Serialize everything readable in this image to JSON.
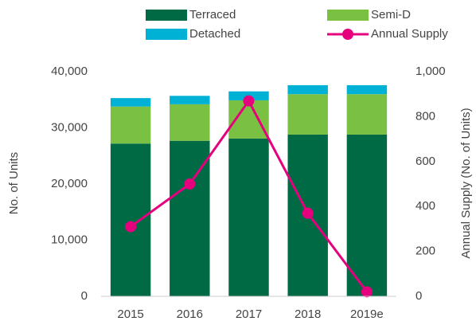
{
  "chart_data": {
    "type": "bar",
    "categories": [
      "2015",
      "2016",
      "2017",
      "2018",
      "2019e"
    ],
    "series": [
      {
        "name": "Terraced",
        "color": "#006a45",
        "values": [
          27200,
          27700,
          28100,
          28800,
          28800
        ]
      },
      {
        "name": "Semi-D",
        "color": "#7ac143",
        "values": [
          6600,
          6500,
          6800,
          7200,
          7200
        ]
      },
      {
        "name": "Detached",
        "color": "#00b1d6",
        "values": [
          1500,
          1500,
          1600,
          1600,
          1600
        ]
      },
      {
        "name": "Annual Supply",
        "color": "#e5007d",
        "type": "line",
        "axis": "y2",
        "values": [
          310,
          500,
          870,
          370,
          20
        ]
      }
    ],
    "ylabel": "No. of Units",
    "y2label": "Annual Supply (No. of Units)",
    "ylim": [
      0,
      40000
    ],
    "yticks": [
      0,
      {
        "value": 10000,
        "label": "10,000"
      },
      {
        "value": 20000,
        "label": "20,000"
      },
      {
        "value": 30000,
        "label": "30,000"
      },
      {
        "value": 40000,
        "label": "40,000"
      }
    ],
    "y2lim": [
      0,
      1000
    ],
    "y2ticks": [
      0,
      200,
      400,
      600,
      800,
      {
        "value": 1000,
        "label": "1,000"
      }
    ],
    "grid": false,
    "legend": "top"
  }
}
